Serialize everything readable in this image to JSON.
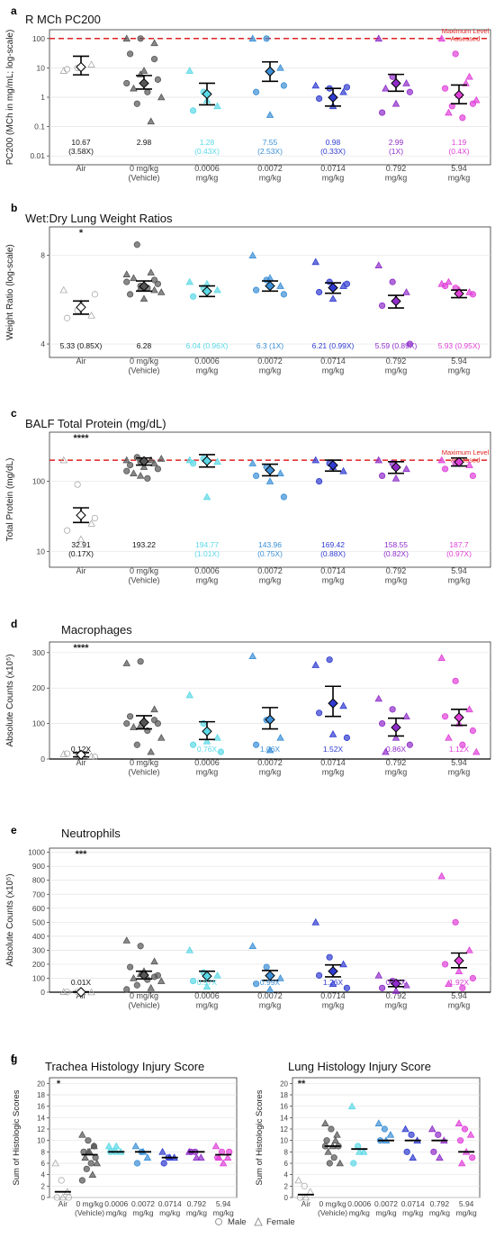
{
  "x_categories": [
    "Air",
    "0 mg/kg\n(Vehicle)",
    "0.0006\nmg/kg",
    "0.0072\nmg/kg",
    "0.0714\nmg/kg",
    "0.792\nmg/kg",
    "5.94\nmg/kg"
  ],
  "x_categories_short": [
    "Air",
    "0 mg/kg\n(Vehicle)",
    "0.0006\nmg/kg",
    "0.0072\nmg/kg",
    "0.0714\nmg/kg",
    "0.792\nmg/kg",
    "5.94\nmg/kg"
  ],
  "group_colors": [
    "#9e9e9e",
    "#555555",
    "#5ad8e6",
    "#3b8fd6",
    "#2f3bd0",
    "#8e2cc9",
    "#e040d8"
  ],
  "legend": {
    "male": "Male",
    "female": "Female"
  },
  "reference_line_label": "Maximum Level Assessed",
  "chart_data": [
    {
      "panel": "a",
      "type": "scatter",
      "title": "R_L MCh PC_200",
      "ylabel": "PC200 (MCh in mg/mL; log-scale)",
      "yscale": "log",
      "ylim": [
        0.005,
        200
      ],
      "yticks": [
        0.01,
        0.1,
        1,
        10,
        100
      ],
      "yticklabels": [
        "0.01",
        "0.1",
        "1",
        "10",
        "100"
      ],
      "reference_line": 100,
      "means": [
        10.67,
        2.98,
        1.28,
        7.55,
        0.98,
        2.99,
        1.19
      ],
      "err_low": [
        5.8,
        1.9,
        0.55,
        3.5,
        0.5,
        1.6,
        0.6
      ],
      "err_high": [
        25,
        5.5,
        3.0,
        16,
        2.0,
        6.0,
        2.6
      ],
      "points": [
        [
          8,
          10,
          13,
          9,
          11
        ],
        [
          100,
          100,
          70,
          30,
          8,
          4,
          2,
          1.5,
          1,
          0.6,
          0.15,
          3,
          6,
          20
        ],
        [
          8,
          1.5,
          0.5,
          0.35,
          0.8
        ],
        [
          100,
          100,
          10,
          1.5,
          0.25,
          2.5
        ],
        [
          2.5,
          2,
          1.5,
          0.9,
          0.5,
          2.2
        ],
        [
          100,
          5,
          3,
          0.3,
          0.6,
          1.5,
          2
        ],
        [
          100,
          30,
          5,
          2,
          1.2,
          0.6,
          0.3,
          0.2,
          0.8,
          0.5,
          3
        ]
      ],
      "annotations": [
        "10.67\n(3.58X)",
        "2.98",
        "1.28\n(0.43X)",
        "7.55\n(2.53X)",
        "0.98\n(0.33X)",
        "2.99\n(1X)",
        "1.19\n(0.4X)"
      ],
      "significance": ""
    },
    {
      "panel": "b",
      "type": "scatter",
      "title": "Wet:Dry Lung Weight Ratios",
      "ylabel": "Weight Ratio (log-scale)",
      "yscale": "log",
      "ylim": [
        3.6,
        10
      ],
      "yticks": [
        4,
        8
      ],
      "yticklabels": [
        "4",
        "8"
      ],
      "means": [
        5.33,
        6.28,
        6.04,
        6.3,
        6.21,
        5.59,
        5.93
      ],
      "err_low": [
        5.05,
        6.05,
        5.8,
        6.05,
        5.95,
        5.3,
        5.75
      ],
      "err_high": [
        5.6,
        6.55,
        6.3,
        6.55,
        6.45,
        5.85,
        6.1
      ],
      "points": [
        [
          6.1,
          5.2,
          5.0,
          4.9,
          5.5,
          5.9
        ],
        [
          6.9,
          6.3,
          6.1,
          5.9,
          5.7,
          6.4,
          6.7,
          6.2,
          6.0,
          8.7,
          7.0,
          6.5,
          6.2,
          6.6
        ],
        [
          6.5,
          6.2,
          6.1,
          5.8,
          6.4
        ],
        [
          8.0,
          6.6,
          6.3,
          6.1,
          6.7,
          5.9
        ],
        [
          7.6,
          6.5,
          6.3,
          6.0,
          5.7,
          6.4
        ],
        [
          7.4,
          6.5,
          6.0,
          5.4,
          5.7,
          4.0
        ],
        [
          6.4,
          6.2,
          6.0,
          6.3,
          6.1,
          5.9,
          6.5
        ]
      ],
      "annotations": [
        "5.33 (0.85X)",
        "6.28",
        "6.04 (0.96X)",
        "6.3 (1X)",
        "6.21 (0.99X)",
        "5.59 (0.89X)",
        "5.93 (0.95X)"
      ],
      "significance": "*"
    },
    {
      "panel": "c",
      "type": "scatter",
      "title": "BALF Total Protein (mg/dL)",
      "ylabel": "Total Protein (mg/dL)",
      "yscale": "log",
      "ylim": [
        6,
        500
      ],
      "yticks": [
        10,
        100
      ],
      "yticklabels": [
        "10",
        "100"
      ],
      "reference_line": 200,
      "means": [
        32.91,
        193.22,
        194.77,
        143.96,
        169.42,
        158.55,
        187.7
      ],
      "err_low": [
        26,
        170,
        160,
        120,
        140,
        130,
        165
      ],
      "err_high": [
        42,
        215,
        240,
        175,
        200,
        190,
        215
      ],
      "points": [
        [
          200,
          90,
          25,
          20,
          15,
          30
        ],
        [
          200,
          190,
          180,
          170,
          160,
          150,
          130,
          110,
          210,
          220,
          200,
          140,
          120
        ],
        [
          200,
          210,
          190,
          180,
          60
        ],
        [
          180,
          160,
          130,
          120,
          100,
          60
        ],
        [
          200,
          180,
          140,
          100,
          160
        ],
        [
          200,
          180,
          150,
          120,
          110
        ],
        [
          200,
          180,
          170,
          150,
          190,
          120
        ]
      ],
      "annotations": [
        "32.91\n(0.17X)",
        "193.22",
        "194.77\n(1.01X)",
        "143.96\n(0.75X)",
        "169.42\n(0.88X)",
        "158.55\n(0.82X)",
        "187.7\n(0.97X)"
      ],
      "significance": "****"
    },
    {
      "panel": "d",
      "type": "scatter",
      "title": "Macrophages",
      "ylabel": "Absolute Counts (x10^5)",
      "yscale": "linear",
      "ylim": [
        0,
        330
      ],
      "yticks": [
        0,
        100,
        200,
        300
      ],
      "yticklabels": [
        "0",
        "100",
        "200",
        "300"
      ],
      "means": [
        12,
        103,
        78,
        111,
        157,
        89,
        117
      ],
      "err_low": [
        6,
        85,
        55,
        85,
        120,
        65,
        95
      ],
      "err_high": [
        18,
        122,
        105,
        145,
        205,
        115,
        140
      ],
      "points": [
        [
          14,
          10,
          8,
          15,
          12,
          6
        ],
        [
          270,
          275,
          140,
          120,
          110,
          100,
          90,
          80,
          60,
          40,
          20,
          100,
          95,
          110
        ],
        [
          180,
          100,
          60,
          40,
          50,
          20
        ],
        [
          290,
          110,
          60,
          40,
          25
        ],
        [
          265,
          280,
          150,
          130,
          70,
          60
        ],
        [
          170,
          140,
          120,
          100,
          60,
          40,
          20
        ],
        [
          285,
          220,
          140,
          120,
          100,
          80,
          60,
          40,
          20
        ]
      ],
      "annotations": [
        "0.12X",
        "",
        "0.76X",
        "1.06X",
        "1.52X",
        "0.86X",
        "1.12X"
      ],
      "significance": "****"
    },
    {
      "panel": "e",
      "type": "scatter",
      "title": "Neutrophils",
      "ylabel": "Absolute Counts (x10^5)",
      "yscale": "linear",
      "ylim": [
        0,
        1030
      ],
      "yticks": [
        0,
        100,
        200,
        300,
        400,
        500,
        600,
        700,
        800,
        900,
        1000
      ],
      "yticklabels": [
        "0",
        "100",
        "200",
        "300",
        "400",
        "500",
        "600",
        "700",
        "800",
        "900",
        "1000"
      ],
      "means": [
        1,
        122,
        115,
        118,
        150,
        61,
        225
      ],
      "err_low": [
        0,
        95,
        80,
        85,
        110,
        40,
        175
      ],
      "err_high": [
        3,
        150,
        150,
        155,
        195,
        85,
        280
      ],
      "points": [
        [
          2,
          1,
          0,
          1,
          0
        ],
        [
          370,
          330,
          220,
          180,
          150,
          120,
          100,
          90,
          80,
          50,
          30,
          20,
          130,
          110
        ],
        [
          300,
          140,
          120,
          80,
          40
        ],
        [
          330,
          180,
          100,
          60,
          20
        ],
        [
          500,
          250,
          200,
          120,
          60,
          30
        ],
        [
          120,
          80,
          50,
          30,
          10
        ],
        [
          830,
          500,
          300,
          200,
          150,
          100,
          60,
          30
        ]
      ],
      "annotations": [
        "0.01X",
        "",
        "0.97X",
        "0.99X",
        "1.26X",
        "0.51X",
        "1.92X"
      ],
      "significance": "***"
    },
    {
      "panel": "f",
      "type": "scatter",
      "title": "Trachea Histology Injury Score",
      "ylabel": "Sum of Histologic Scores",
      "yscale": "linear",
      "ylim": [
        0,
        21
      ],
      "yticks": [
        0,
        2,
        4,
        6,
        8,
        10,
        12,
        14,
        16,
        18,
        20
      ],
      "yticklabels": [
        "0",
        "2",
        "4",
        "6",
        "8",
        "10",
        "12",
        "14",
        "16",
        "18",
        "20"
      ],
      "means": [
        1,
        7.5,
        8,
        8,
        7,
        8,
        7.5
      ],
      "points": [
        [
          6,
          3,
          1,
          0,
          0,
          0
        ],
        [
          11,
          10,
          9,
          8,
          8,
          7,
          7,
          6,
          6,
          5,
          4,
          3,
          8,
          9
        ],
        [
          9,
          8,
          8,
          8,
          9
        ],
        [
          9,
          8,
          7,
          6,
          8
        ],
        [
          8,
          7,
          7,
          6,
          7
        ],
        [
          8,
          8,
          7,
          8,
          7
        ],
        [
          9,
          8,
          7,
          7,
          6,
          8,
          7
        ]
      ],
      "significance": "*"
    },
    {
      "panel": "g",
      "type": "scatter",
      "title": "Lung Histology Injury Score",
      "ylabel": "Sum of Histologic Scores",
      "yscale": "linear",
      "ylim": [
        0,
        21
      ],
      "yticks": [
        0,
        2,
        4,
        6,
        8,
        10,
        12,
        14,
        16,
        18,
        20
      ],
      "yticklabels": [
        "0",
        "2",
        "4",
        "6",
        "8",
        "10",
        "12",
        "14",
        "16",
        "18",
        "20"
      ],
      "means": [
        0.5,
        9,
        8.5,
        10,
        10,
        10,
        8
      ],
      "points": [
        [
          3,
          2,
          1,
          0,
          0
        ],
        [
          13,
          12,
          11,
          10,
          9,
          9,
          8,
          7,
          6,
          6,
          10,
          9
        ],
        [
          16,
          9,
          8,
          6,
          8
        ],
        [
          13,
          12,
          11,
          10,
          10
        ],
        [
          12,
          11,
          10,
          8,
          7
        ],
        [
          12,
          11,
          10,
          8,
          7
        ],
        [
          13,
          12,
          11,
          10,
          8,
          7,
          6
        ]
      ],
      "significance": "**"
    }
  ]
}
